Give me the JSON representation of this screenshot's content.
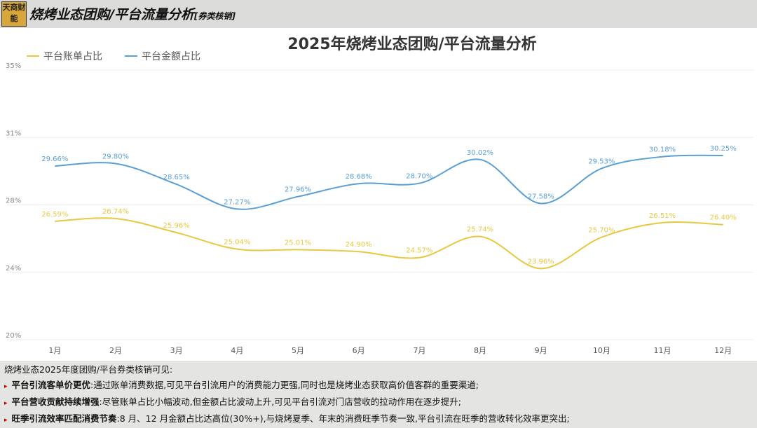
{
  "header": {
    "logo": "天商财能",
    "title": "烧烤业态团购/平台流量分析",
    "subtitle": "[券类核销]"
  },
  "chart_data": {
    "type": "line",
    "title": "2025年烧烤业态团购/平台流量分析",
    "categories": [
      "1月",
      "2月",
      "3月",
      "4月",
      "5月",
      "6月",
      "7月",
      "8月",
      "9月",
      "10月",
      "11月",
      "12月"
    ],
    "series": [
      {
        "name": "平台账单占比",
        "color": "#e8c840",
        "values": [
          26.59,
          26.74,
          25.96,
          25.04,
          25.01,
          24.9,
          24.57,
          25.74,
          23.96,
          25.7,
          26.51,
          26.4
        ],
        "value_labels": [
          "26.59%",
          "26.74%",
          "25.96%",
          "25.04%",
          "25.01%",
          "24.90%",
          "24.57%",
          "25.74%",
          "23.96%",
          "25.70%",
          "26.51%",
          "26.40%"
        ]
      },
      {
        "name": "平台金额占比",
        "color": "#5a9fd4",
        "values": [
          29.66,
          29.8,
          28.65,
          27.27,
          27.96,
          28.68,
          28.7,
          30.02,
          27.58,
          29.53,
          30.18,
          30.25
        ],
        "value_labels": [
          "29.66%",
          "29.80%",
          "28.65%",
          "27.27%",
          "27.96%",
          "28.68%",
          "28.70%",
          "30.02%",
          "27.58%",
          "29.53%",
          "30.18%",
          "30.25%"
        ]
      }
    ],
    "ylim": [
      20,
      35
    ],
    "yticks": [
      {
        "value": 20,
        "label": "20%"
      },
      {
        "value": 23.75,
        "label": "24%"
      },
      {
        "value": 27.5,
        "label": "28%"
      },
      {
        "value": 31.25,
        "label": "31%"
      },
      {
        "value": 35,
        "label": "35%"
      }
    ],
    "grid": true,
    "legend": "top-left"
  },
  "footer": {
    "intro": "烧烤业态2025年度团购/平台券类核销可见:",
    "points": [
      {
        "head": "平台引流客单价更优",
        "text": ":通过账单消费数据,可见平台引流用户的消费能力更强,同时也是烧烤业态获取高价值客群的重要渠道;"
      },
      {
        "head": "平台营收贡献持续增强",
        "text": ":尽管账单占比小幅波动,但金额占比波动上升,可见平台引流对门店营收的拉动作用在逐步提升;"
      },
      {
        "head": "旺季引流效率匹配消费节奏",
        "text": ":8 月、12 月金额占比达高位(30%+),与烧烤夏季、年末的消费旺季节奏一致,平台引流在旺季的营收转化效率更突出;"
      }
    ]
  }
}
